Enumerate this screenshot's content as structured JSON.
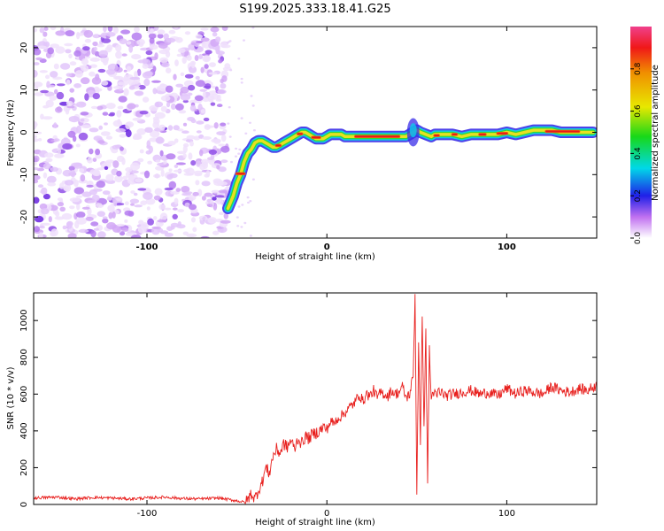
{
  "title": "S199.2025.333.18.41.G25",
  "chart_data": [
    {
      "type": "heatmap",
      "xlabel": "Height of straight line (km)",
      "ylabel": "Frequency (Hz)",
      "xlim": [
        -163,
        150
      ],
      "ylim": [
        -25,
        25
      ],
      "x_ticks": [
        -100,
        0,
        100
      ],
      "y_ticks": [
        20,
        10,
        0,
        -10,
        -20
      ],
      "noise_region_x": [
        -163,
        -55
      ],
      "ridge": {
        "description": "frequency track of dominant spectral peak",
        "x": [
          -55,
          -52,
          -50,
          -48,
          -46,
          -44,
          -42,
          -40,
          -38,
          -36,
          -34,
          -32,
          -30,
          -28,
          -26,
          -24,
          -22,
          -20,
          -18,
          -16,
          -14,
          -12,
          -10,
          -8,
          -6,
          -4,
          -2,
          0,
          2,
          5,
          8,
          10,
          15,
          20,
          30,
          40,
          42,
          44,
          46,
          48,
          50,
          52,
          55,
          58,
          60,
          65,
          70,
          75,
          80,
          85,
          90,
          95,
          100,
          105,
          110,
          115,
          120,
          125,
          130,
          135,
          140,
          145,
          148
        ],
        "y": [
          -18,
          -15,
          -12,
          -10,
          -7,
          -5,
          -4,
          -2.5,
          -2,
          -2,
          -2.5,
          -3,
          -3.5,
          -3.5,
          -3,
          -2.5,
          -2,
          -1.5,
          -1,
          -0.5,
          0,
          0,
          -0.5,
          -1,
          -1.5,
          -1.5,
          -1.5,
          -1,
          -0.5,
          -0.5,
          -0.5,
          -1,
          -1,
          -1,
          -1,
          -1,
          -1,
          -1,
          -0.5,
          0,
          0.5,
          0,
          -0.5,
          -1,
          -0.5,
          -0.5,
          -0.5,
          -1,
          -0.5,
          -0.5,
          -0.5,
          -0.5,
          0,
          -0.5,
          0,
          0.5,
          0.5,
          0.5,
          0,
          0,
          0,
          0,
          0
        ]
      },
      "colorbar": {
        "label": "Normalized spectral amplitude",
        "ticks": [
          0.0,
          0.2,
          0.4,
          0.6,
          0.8
        ],
        "range": [
          0,
          1
        ]
      }
    },
    {
      "type": "line",
      "xlabel": "Height of straight line (km)",
      "ylabel": "SNR (10 * v/v)",
      "xlim": [
        -163,
        150
      ],
      "ylim": [
        0,
        1150
      ],
      "x_ticks": [
        -100,
        0,
        100
      ],
      "y_ticks": [
        0,
        200,
        400,
        600,
        800,
        1000
      ],
      "series": [
        {
          "name": "SNR",
          "color": "#e8201e",
          "x": [
            -163,
            -150,
            -140,
            -130,
            -120,
            -110,
            -100,
            -90,
            -80,
            -70,
            -60,
            -50,
            -45,
            -42,
            -40,
            -38,
            -36,
            -34,
            -32,
            -30,
            -28,
            -26,
            -24,
            -22,
            -20,
            -18,
            -16,
            -14,
            -12,
            -10,
            -8,
            -6,
            -4,
            -2,
            0,
            2,
            4,
            6,
            8,
            10,
            12,
            14,
            16,
            18,
            20,
            22,
            24,
            26,
            28,
            30,
            32,
            34,
            36,
            38,
            40,
            42,
            44,
            46,
            48,
            49,
            50,
            51,
            52,
            53,
            54,
            55,
            56,
            57,
            58,
            59,
            60,
            61,
            62,
            63,
            64,
            66,
            70,
            75,
            80,
            85,
            90,
            95,
            100,
            105,
            110,
            115,
            120,
            125,
            130,
            135,
            140,
            145,
            150
          ],
          "y": [
            35,
            40,
            30,
            38,
            35,
            30,
            35,
            40,
            32,
            30,
            35,
            20,
            10,
            60,
            30,
            80,
            120,
            200,
            170,
            260,
            300,
            280,
            330,
            310,
            350,
            300,
            360,
            330,
            370,
            360,
            380,
            390,
            400,
            420,
            410,
            450,
            440,
            470,
            480,
            500,
            520,
            540,
            560,
            600,
            560,
            600,
            590,
            620,
            580,
            610,
            600,
            590,
            620,
            600,
            610,
            640,
            580,
            600,
            700,
            1140,
            70,
            900,
            300,
            1050,
            400,
            950,
            130,
            850,
            560,
            620,
            600,
            580,
            620,
            600,
            610,
            590,
            600,
            610,
            620,
            600,
            610,
            590,
            630,
            600,
            620,
            610,
            600,
            640,
            620,
            610,
            630,
            620,
            650
          ]
        }
      ]
    }
  ]
}
